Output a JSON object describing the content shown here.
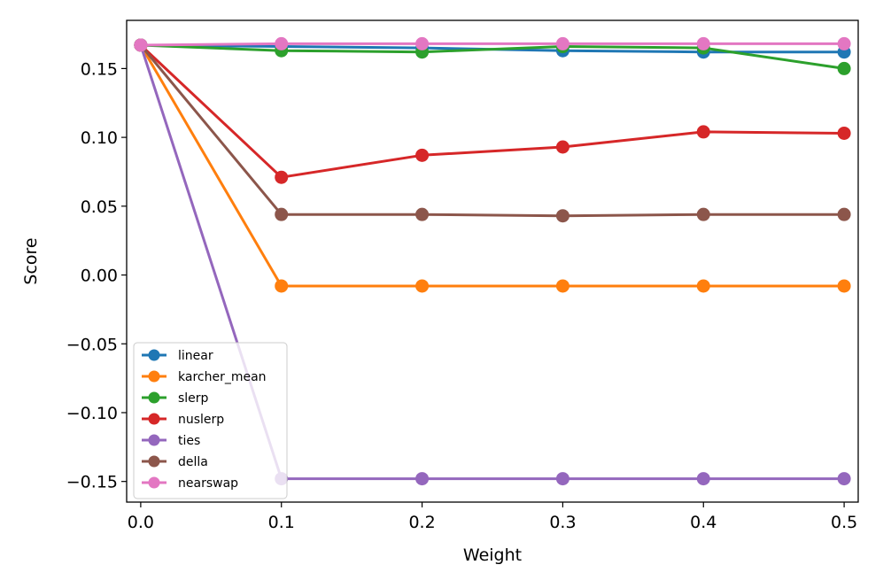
{
  "chart_data": {
    "type": "line",
    "title": "",
    "xlabel": "Weight",
    "ylabel": "Score",
    "xlim": [
      -0.01,
      0.51
    ],
    "ylim": [
      -0.165,
      0.185
    ],
    "x": [
      0.0,
      0.1,
      0.2,
      0.3,
      0.4,
      0.5
    ],
    "x_tick_values": [
      0.0,
      0.1,
      0.2,
      0.3,
      0.4,
      0.5
    ],
    "x_tick_labels": [
      "0.0",
      "0.1",
      "0.2",
      "0.3",
      "0.4",
      "0.5"
    ],
    "y_tick_values": [
      0.15,
      0.1,
      0.05,
      0.0,
      -0.05,
      -0.1,
      -0.15
    ],
    "y_tick_labels": [
      "0.15",
      "0.10",
      "0.05",
      "0.00",
      "−0.05",
      "−0.10",
      "−0.15"
    ],
    "grid": false,
    "legend_position": "lower-left",
    "series": [
      {
        "name": "linear",
        "color": "#1f77b4",
        "values": [
          0.167,
          0.166,
          0.165,
          0.163,
          0.162,
          0.162
        ]
      },
      {
        "name": "karcher_mean",
        "color": "#ff7f0e",
        "values": [
          0.167,
          -0.008,
          -0.008,
          -0.008,
          -0.008,
          -0.008
        ]
      },
      {
        "name": "slerp",
        "color": "#2ca02c",
        "values": [
          0.167,
          0.163,
          0.162,
          0.166,
          0.165,
          0.15
        ]
      },
      {
        "name": "nuslerp",
        "color": "#d62728",
        "values": [
          0.167,
          0.071,
          0.087,
          0.093,
          0.104,
          0.103
        ]
      },
      {
        "name": "ties",
        "color": "#9467bd",
        "values": [
          0.167,
          -0.148,
          -0.148,
          -0.148,
          -0.148,
          -0.148
        ]
      },
      {
        "name": "della",
        "color": "#8c564b",
        "values": [
          0.167,
          0.044,
          0.044,
          0.043,
          0.044,
          0.044
        ]
      },
      {
        "name": "nearswap",
        "color": "#e377c2",
        "values": [
          0.167,
          0.168,
          0.168,
          0.168,
          0.168,
          0.168
        ]
      }
    ]
  }
}
